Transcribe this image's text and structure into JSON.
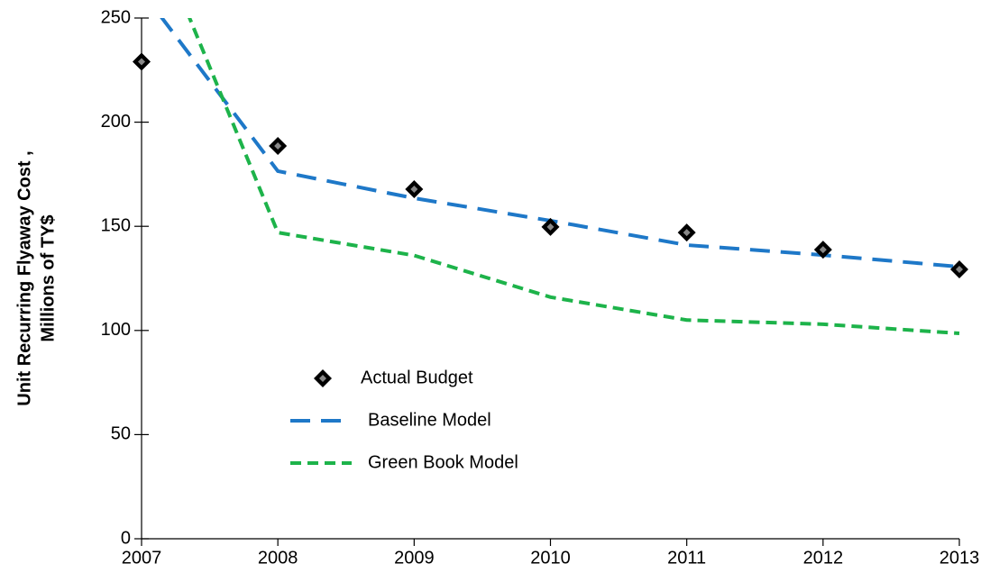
{
  "chart_data": {
    "type": "line",
    "ylabel": [
      "Unit Recurring Flyaway Cost ,",
      "Millions of TY$"
    ],
    "xlim": [
      2007,
      2013
    ],
    "xticks": [
      2007,
      2008,
      2009,
      2010,
      2011,
      2012,
      2013
    ],
    "ylim": [
      0,
      250
    ],
    "yticks": [
      0,
      50,
      100,
      150,
      200,
      250
    ],
    "legend": "lower-left",
    "series": [
      {
        "name": "Actual Budget",
        "color": "#000000",
        "style": "marker",
        "x": [
          2007,
          2008,
          2009,
          2010,
          2011,
          2012,
          2013
        ],
        "values": [
          229,
          188.6,
          167.8,
          149.7,
          147,
          138.8,
          129.3
        ]
      },
      {
        "name": "Baseline Model",
        "color": "#1e78c8",
        "style": "long-dash",
        "x": [
          2007,
          2008,
          2009,
          2010,
          2011,
          2012,
          2013
        ],
        "values": [
          263,
          176.5,
          163.5,
          152.7,
          141,
          136.2,
          130.6
        ]
      },
      {
        "name": "Green Book Model",
        "color": "#1db34a",
        "style": "short-dash",
        "x": [
          2007,
          2008,
          2009,
          2010,
          2011,
          2012,
          2013
        ],
        "values": [
          306,
          147,
          136,
          116,
          105,
          103,
          98.6
        ]
      }
    ]
  }
}
